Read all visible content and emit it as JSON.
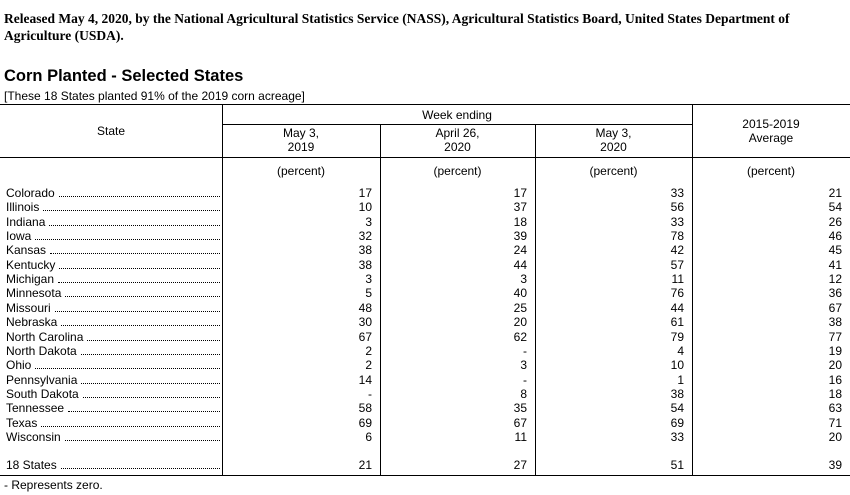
{
  "header": {
    "release": "Released May 4, 2020, by the National Agricultural Statistics Service (NASS), Agricultural Statistics Board, United States Department of Agriculture (USDA).",
    "title": "Corn Planted - Selected States",
    "subtitle": "[These 18 States planted 91% of the 2019 corn acreage]"
  },
  "table": {
    "state_header": "State",
    "group_header": "Week ending",
    "columns": [
      [
        "May 3,",
        "2019"
      ],
      [
        "April 26,",
        "2020"
      ],
      [
        "May 3,",
        "2020"
      ],
      [
        "2015-2019",
        "Average"
      ]
    ],
    "units": [
      "(percent)",
      "(percent)",
      "(percent)",
      "(percent)"
    ],
    "rows": [
      [
        "Colorado",
        "17",
        "17",
        "33",
        "21"
      ],
      [
        "Illinois",
        "10",
        "37",
        "56",
        "54"
      ],
      [
        "Indiana",
        "3",
        "18",
        "33",
        "26"
      ],
      [
        "Iowa",
        "32",
        "39",
        "78",
        "46"
      ],
      [
        "Kansas",
        "38",
        "24",
        "42",
        "45"
      ],
      [
        "Kentucky",
        "38",
        "44",
        "57",
        "41"
      ],
      [
        "Michigan",
        "3",
        "3",
        "11",
        "12"
      ],
      [
        "Minnesota",
        "5",
        "40",
        "76",
        "36"
      ],
      [
        "Missouri",
        "48",
        "25",
        "44",
        "67"
      ],
      [
        "Nebraska",
        "30",
        "20",
        "61",
        "38"
      ],
      [
        "North Carolina",
        "67",
        "62",
        "79",
        "77"
      ],
      [
        "North Dakota",
        "2",
        "-",
        "4",
        "19"
      ],
      [
        "Ohio",
        "2",
        "3",
        "10",
        "20"
      ],
      [
        "Pennsylvania",
        "14",
        "-",
        "1",
        "16"
      ],
      [
        "South Dakota",
        "-",
        "8",
        "38",
        "18"
      ],
      [
        "Tennessee",
        "58",
        "35",
        "54",
        "63"
      ],
      [
        "Texas",
        "69",
        "67",
        "69",
        "71"
      ],
      [
        "Wisconsin",
        "6",
        "11",
        "33",
        "20"
      ]
    ],
    "total": [
      "18 States",
      "21",
      "27",
      "51",
      "39"
    ]
  },
  "footnote": "- Represents zero."
}
